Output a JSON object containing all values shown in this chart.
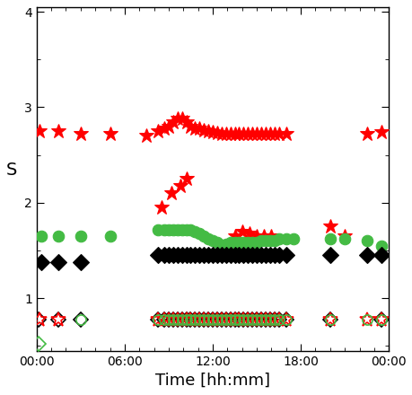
{
  "title": "",
  "xlabel": "Time [hh:mm]",
  "ylabel": "S",
  "ylim": [
    0.45,
    4.05
  ],
  "yticks": [
    1,
    2,
    3,
    4
  ],
  "background_color": "#ffffff",
  "series": [
    {
      "name": "red_star_solid_high",
      "color": "red",
      "marker": "*",
      "filled": true,
      "times_h": [
        0.2,
        1.5,
        3.0,
        5.0,
        7.5,
        8.3,
        8.7,
        9.0,
        9.3,
        9.6,
        9.9,
        10.2,
        10.5,
        10.8,
        11.1,
        11.4,
        11.7,
        12.0,
        12.3,
        12.6,
        12.9,
        13.2,
        13.5,
        13.8,
        14.1,
        14.4,
        14.7,
        15.0,
        15.3,
        15.6,
        15.9,
        16.2,
        16.5,
        17.0,
        22.5,
        23.5
      ],
      "values": [
        2.75,
        2.75,
        2.72,
        2.72,
        2.7,
        2.75,
        2.78,
        2.8,
        2.84,
        2.88,
        2.88,
        2.84,
        2.8,
        2.78,
        2.78,
        2.76,
        2.75,
        2.74,
        2.73,
        2.72,
        2.72,
        2.72,
        2.72,
        2.72,
        2.72,
        2.72,
        2.72,
        2.72,
        2.72,
        2.72,
        2.72,
        2.72,
        2.72,
        2.72,
        2.72,
        2.74
      ],
      "markersize": 12
    },
    {
      "name": "red_star_solid_mid",
      "color": "red",
      "marker": "*",
      "filled": true,
      "times_h": [
        8.5,
        9.2,
        9.8,
        10.2,
        13.5,
        14.0,
        14.5,
        15.0,
        15.5,
        16.0,
        20.0,
        21.0
      ],
      "values": [
        1.95,
        2.1,
        2.18,
        2.25,
        1.65,
        1.7,
        1.68,
        1.65,
        1.65,
        1.65,
        1.75,
        1.65
      ],
      "markersize": 12
    },
    {
      "name": "green_circle_solid",
      "color": "#44bb44",
      "marker": "o",
      "filled": true,
      "times_h": [
        0.3,
        1.5,
        3.0,
        5.0,
        8.3,
        8.7,
        9.0,
        9.3,
        9.6,
        9.9,
        10.2,
        10.5,
        10.8,
        11.1,
        11.4,
        11.7,
        12.0,
        12.3,
        12.6,
        12.9,
        13.2,
        13.5,
        13.8,
        14.1,
        14.4,
        14.7,
        15.0,
        15.3,
        15.6,
        15.9,
        16.2,
        16.5,
        17.0,
        17.5,
        20.0,
        21.0,
        22.5,
        23.5
      ],
      "values": [
        1.65,
        1.65,
        1.65,
        1.65,
        1.72,
        1.72,
        1.72,
        1.72,
        1.72,
        1.72,
        1.72,
        1.72,
        1.7,
        1.68,
        1.65,
        1.62,
        1.6,
        1.58,
        1.56,
        1.57,
        1.58,
        1.58,
        1.58,
        1.58,
        1.58,
        1.58,
        1.58,
        1.6,
        1.6,
        1.6,
        1.6,
        1.62,
        1.62,
        1.62,
        1.62,
        1.62,
        1.6,
        1.55
      ],
      "markersize": 9
    },
    {
      "name": "black_diamond_solid",
      "color": "black",
      "marker": "D",
      "filled": true,
      "times_h": [
        0.3,
        1.5,
        3.0,
        8.3,
        8.7,
        9.0,
        9.3,
        9.6,
        9.9,
        10.2,
        10.5,
        10.8,
        11.1,
        11.4,
        11.7,
        12.0,
        12.3,
        12.6,
        12.9,
        13.2,
        13.5,
        13.8,
        14.1,
        14.4,
        14.7,
        15.0,
        15.3,
        15.6,
        15.9,
        16.2,
        16.5,
        17.0,
        20.0,
        22.5,
        23.5
      ],
      "values": [
        1.38,
        1.38,
        1.38,
        1.45,
        1.45,
        1.45,
        1.45,
        1.45,
        1.45,
        1.45,
        1.45,
        1.45,
        1.45,
        1.45,
        1.45,
        1.45,
        1.45,
        1.45,
        1.45,
        1.45,
        1.45,
        1.45,
        1.45,
        1.45,
        1.45,
        1.45,
        1.45,
        1.45,
        1.45,
        1.45,
        1.45,
        1.45,
        1.45,
        1.45,
        1.45
      ],
      "markersize": 9
    },
    {
      "name": "black_diamond_open_low",
      "color": "black",
      "marker": "D",
      "filled": false,
      "times_h": [
        0.15,
        1.5,
        3.0,
        8.3,
        8.7,
        9.0,
        9.3,
        9.6,
        9.9,
        10.2,
        10.5,
        10.8,
        11.1,
        11.4,
        11.7,
        12.0,
        12.3,
        12.6,
        12.9,
        13.2,
        13.5,
        13.8,
        14.1,
        14.4,
        14.7,
        15.0,
        15.3,
        15.6,
        15.9,
        16.2,
        16.5,
        17.0,
        20.0,
        23.5
      ],
      "values": [
        0.78,
        0.78,
        0.78,
        0.78,
        0.78,
        0.78,
        0.78,
        0.78,
        0.78,
        0.78,
        0.78,
        0.78,
        0.78,
        0.78,
        0.78,
        0.78,
        0.78,
        0.78,
        0.78,
        0.78,
        0.78,
        0.78,
        0.78,
        0.78,
        0.78,
        0.78,
        0.78,
        0.78,
        0.78,
        0.78,
        0.78,
        0.78,
        0.78,
        0.78
      ],
      "markersize": 8
    },
    {
      "name": "red_star_open_low",
      "color": "red",
      "marker": "*",
      "filled": false,
      "times_h": [
        0.2,
        1.5,
        8.3,
        8.7,
        9.0,
        9.3,
        9.6,
        9.9,
        10.2,
        10.5,
        10.8,
        11.1,
        11.4,
        11.7,
        12.0,
        12.3,
        12.6,
        12.9,
        13.2,
        13.5,
        13.8,
        14.1,
        14.4,
        14.7,
        15.0,
        15.3,
        15.6,
        15.9,
        16.2,
        16.5,
        17.0,
        20.0,
        22.5,
        23.5
      ],
      "values": [
        0.78,
        0.78,
        0.78,
        0.78,
        0.78,
        0.78,
        0.78,
        0.78,
        0.78,
        0.78,
        0.78,
        0.78,
        0.78,
        0.78,
        0.78,
        0.78,
        0.78,
        0.78,
        0.78,
        0.78,
        0.78,
        0.78,
        0.78,
        0.78,
        0.78,
        0.78,
        0.78,
        0.78,
        0.78,
        0.78,
        0.78,
        0.78,
        0.78,
        0.78
      ],
      "markersize": 12
    },
    {
      "name": "green_circle_open_low",
      "color": "#44bb44",
      "marker": "o",
      "filled": false,
      "times_h": [
        3.0,
        8.3,
        8.7,
        9.0,
        9.3,
        9.6,
        9.9,
        10.2,
        10.5,
        10.8,
        11.1,
        11.4,
        11.7,
        12.0,
        12.3,
        12.6,
        12.9,
        13.2,
        13.5,
        13.8,
        14.1,
        14.4,
        14.7,
        15.0,
        15.3,
        15.6,
        15.9,
        16.2,
        16.5,
        17.0,
        20.0,
        22.5,
        23.5
      ],
      "values": [
        0.78,
        0.78,
        0.78,
        0.78,
        0.78,
        0.78,
        0.78,
        0.78,
        0.78,
        0.78,
        0.78,
        0.78,
        0.78,
        0.78,
        0.78,
        0.78,
        0.78,
        0.78,
        0.78,
        0.78,
        0.78,
        0.78,
        0.78,
        0.78,
        0.78,
        0.78,
        0.78,
        0.78,
        0.78,
        0.78,
        0.78,
        0.78,
        0.78
      ],
      "markersize": 8
    },
    {
      "name": "green_diamond_open_origin",
      "color": "#44bb44",
      "marker": "D",
      "filled": false,
      "times_h": [
        0.15
      ],
      "values": [
        0.52
      ],
      "markersize": 8
    }
  ]
}
